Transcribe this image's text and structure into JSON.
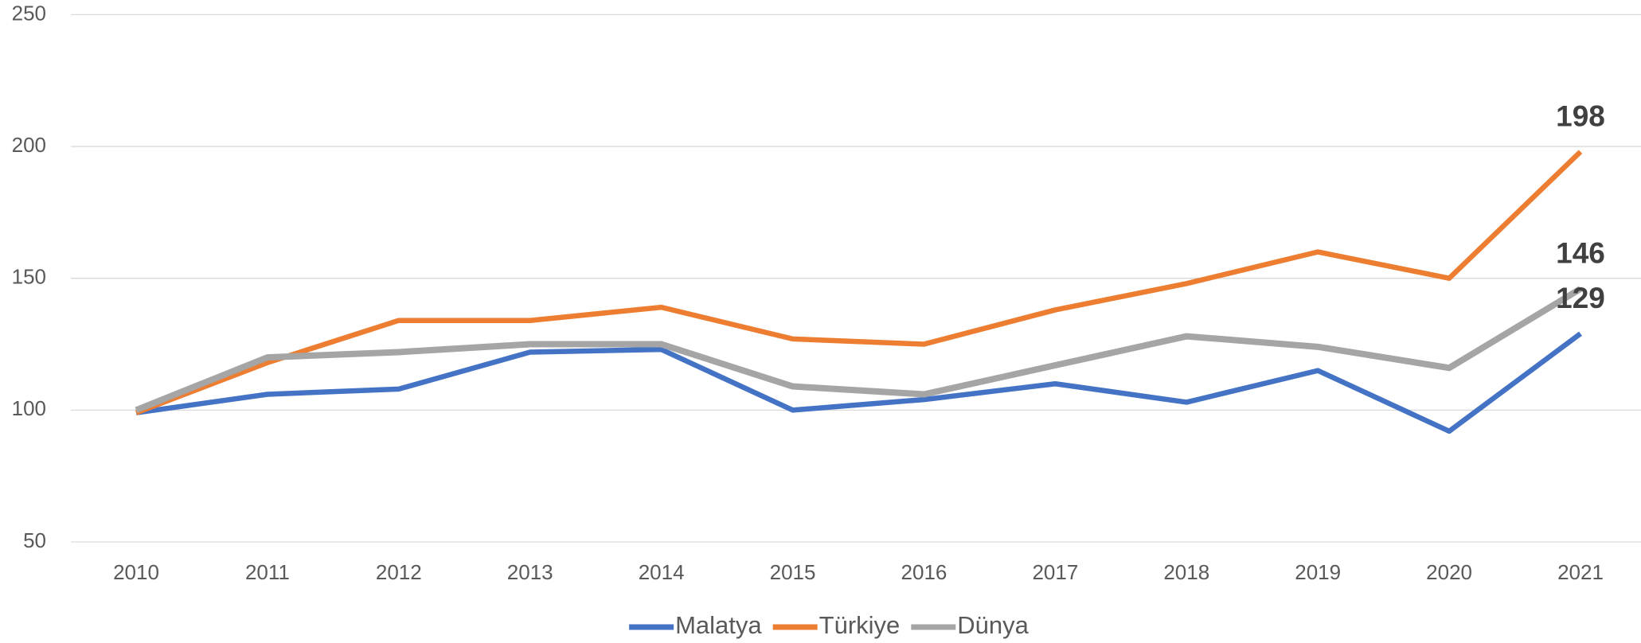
{
  "chart_data": {
    "type": "line",
    "categories": [
      "2010",
      "2011",
      "2012",
      "2013",
      "2014",
      "2015",
      "2016",
      "2017",
      "2018",
      "2019",
      "2020",
      "2021"
    ],
    "series": [
      {
        "name": "Malatya",
        "color": "#4472c4",
        "values": [
          99,
          106,
          108,
          122,
          123,
          100,
          104,
          110,
          103,
          115,
          92,
          129
        ]
      },
      {
        "name": "Türkiye",
        "color": "#ed7d31",
        "values": [
          99,
          118,
          134,
          134,
          139,
          127,
          125,
          138,
          148,
          160,
          150,
          198
        ]
      },
      {
        "name": "Dünya",
        "color": "#a5a5a5",
        "values": [
          100,
          120,
          122,
          125,
          125,
          109,
          106,
          117,
          128,
          124,
          116,
          146
        ]
      }
    ],
    "ylim": [
      50,
      250
    ],
    "yticks": [
      50,
      100,
      150,
      200,
      250
    ],
    "grid": true,
    "legend": "bottom"
  }
}
